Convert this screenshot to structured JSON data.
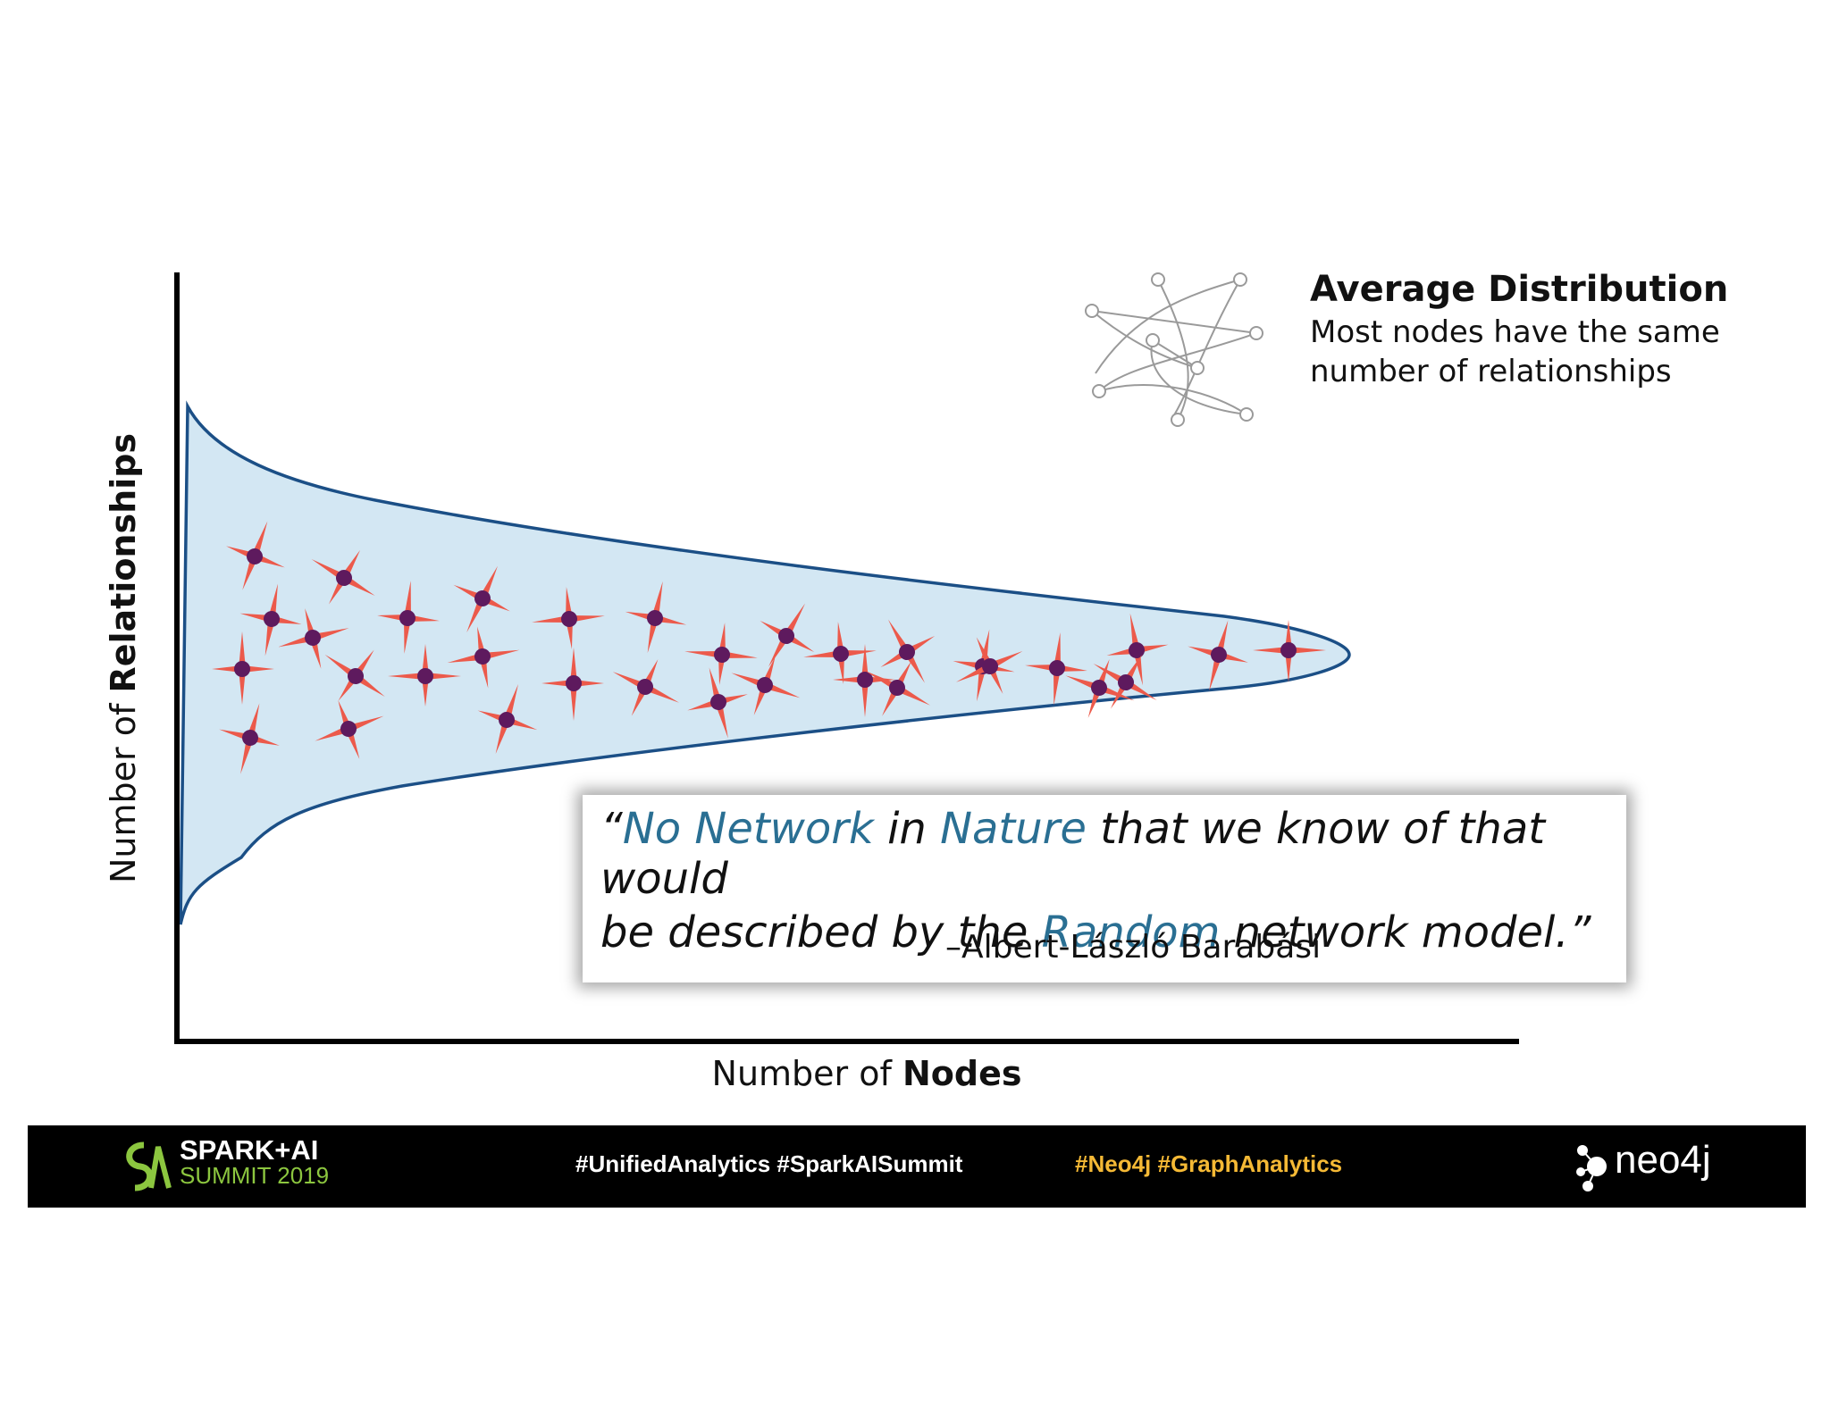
{
  "axes": {
    "y_title_prefix": "Number of ",
    "y_title_bold": "Relationships",
    "x_title_prefix": "Number of ",
    "x_title_bold": "Nodes"
  },
  "legend": {
    "title": "Average Distribution",
    "line1": "Most nodes have the same",
    "line2": "number of relationships",
    "icon": "random-network-icon"
  },
  "quote": {
    "open_mark": "“",
    "part1": "No Network",
    "part2": " in ",
    "part3": "Nature",
    "part4": " that we know of that would",
    "part5": "be described by the ",
    "part6": "Random",
    "part7": " network model.”",
    "author": "–Albert-László Barabási",
    "highlight_color": "#2a6f93"
  },
  "footer": {
    "event_title": "SPARK+AI",
    "event_sub": "SUMMIT 2019",
    "tags_white": "#UnifiedAnalytics #SparkAISummit",
    "tags_yellow": "#Neo4j  #GraphAnalytics",
    "brand": "neo4j"
  },
  "colors": {
    "fill": "#d3e7f3",
    "outline": "#1b4f86",
    "node": "#5e1a5e",
    "spike": "#ec5a4b",
    "yellow": "#f5b935",
    "green": "#8cc63f"
  }
}
